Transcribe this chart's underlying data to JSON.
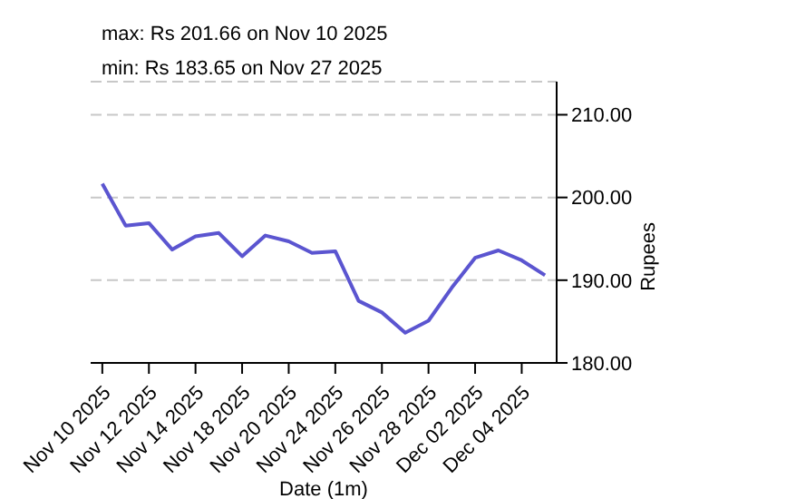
{
  "chart_data": {
    "type": "line",
    "annotations": [
      "max: Rs 201.66 on Nov 10 2025",
      "min: Rs 183.65 on Nov 27 2025"
    ],
    "xlabel": "Date (1m)",
    "ylabel": "Rupees",
    "categories": [
      "Nov 10 2025",
      null,
      "Nov 12 2025",
      null,
      "Nov 14 2025",
      null,
      "Nov 18 2025",
      null,
      "Nov 20 2025",
      null,
      "Nov 24 2025",
      null,
      "Nov 26 2025",
      null,
      "Nov 28 2025",
      null,
      "Dec 02 2025",
      null,
      "Dec 04 2025",
      null
    ],
    "series": [
      {
        "color": "#5b55d0",
        "values": [
          201.66,
          196.6,
          196.9,
          193.7,
          195.3,
          195.7,
          192.9,
          195.4,
          194.7,
          193.3,
          193.5,
          187.5,
          186.1,
          183.65,
          185.1,
          189.1,
          192.7,
          193.6,
          192.4,
          190.6
        ]
      }
    ],
    "ylim": [
      180,
      214
    ],
    "yticks": [
      {
        "value": 180,
        "label": "180.00"
      },
      {
        "value": 190,
        "label": "190.00"
      },
      {
        "value": 200,
        "label": "200.00"
      },
      {
        "value": 210,
        "label": "210.00"
      }
    ],
    "grid": "y",
    "marker": "none",
    "line_style": "solid"
  }
}
